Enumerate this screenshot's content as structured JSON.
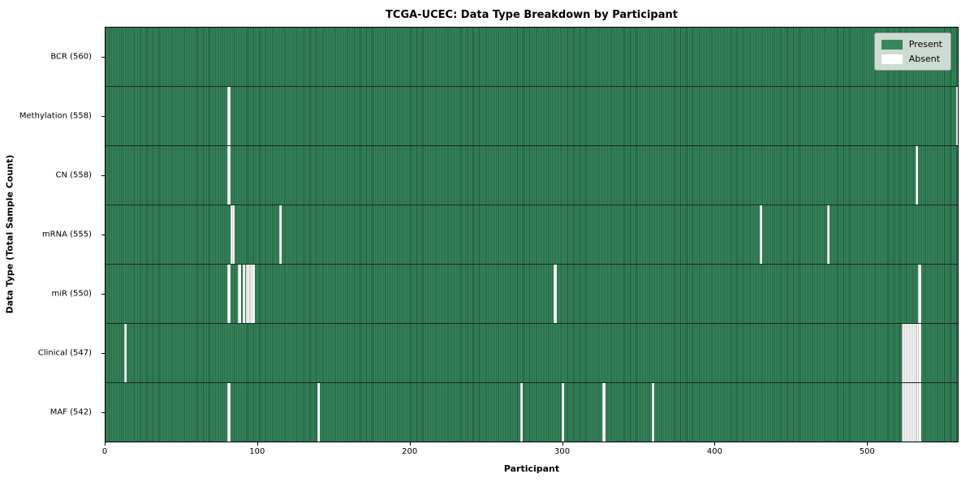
{
  "title": "TCGA-UCEC: Data Type Breakdown by Participant",
  "legend": {
    "present_label": "Present",
    "absent_label": "Absent"
  },
  "colors": {
    "present_fill": "#38875c",
    "present_edge": "#1c5636",
    "absent": "#ffffff"
  },
  "chart_data": {
    "type": "heatmap",
    "title": "TCGA-UCEC: Data Type Breakdown by Participant",
    "xlabel": "Participant",
    "ylabel": "Data Type (Total Sample Count)",
    "n_participants": 560,
    "x_ticks": [
      0,
      100,
      200,
      300,
      400,
      500
    ],
    "legend_entries": [
      "Present",
      "Absent"
    ],
    "legend_position": "upper right",
    "grid": false,
    "rows": [
      {
        "label": "BCR (560)",
        "total": 560,
        "absent": []
      },
      {
        "label": "Methylation (558)",
        "total": 558,
        "absent": [
          80,
          558
        ]
      },
      {
        "label": "CN (558)",
        "total": 558,
        "absent": [
          80,
          531
        ]
      },
      {
        "label": "mRNA (555)",
        "total": 555,
        "absent": [
          82,
          83,
          114,
          429,
          473
        ]
      },
      {
        "label": "miR (550)",
        "total": 550,
        "absent": [
          80,
          87,
          90,
          92,
          93,
          94,
          95,
          96,
          294,
          533
        ]
      },
      {
        "label": "Clinical (547)",
        "total": 547,
        "absent": [
          12,
          522,
          523,
          524,
          525,
          526,
          527,
          528,
          529,
          530,
          531,
          532,
          533
        ]
      },
      {
        "label": "MAF (542)",
        "total": 542,
        "absent": [
          80,
          139,
          272,
          299,
          326,
          358,
          522,
          523,
          524,
          525,
          526,
          527,
          528,
          529,
          530,
          531,
          532,
          533
        ]
      }
    ]
  }
}
